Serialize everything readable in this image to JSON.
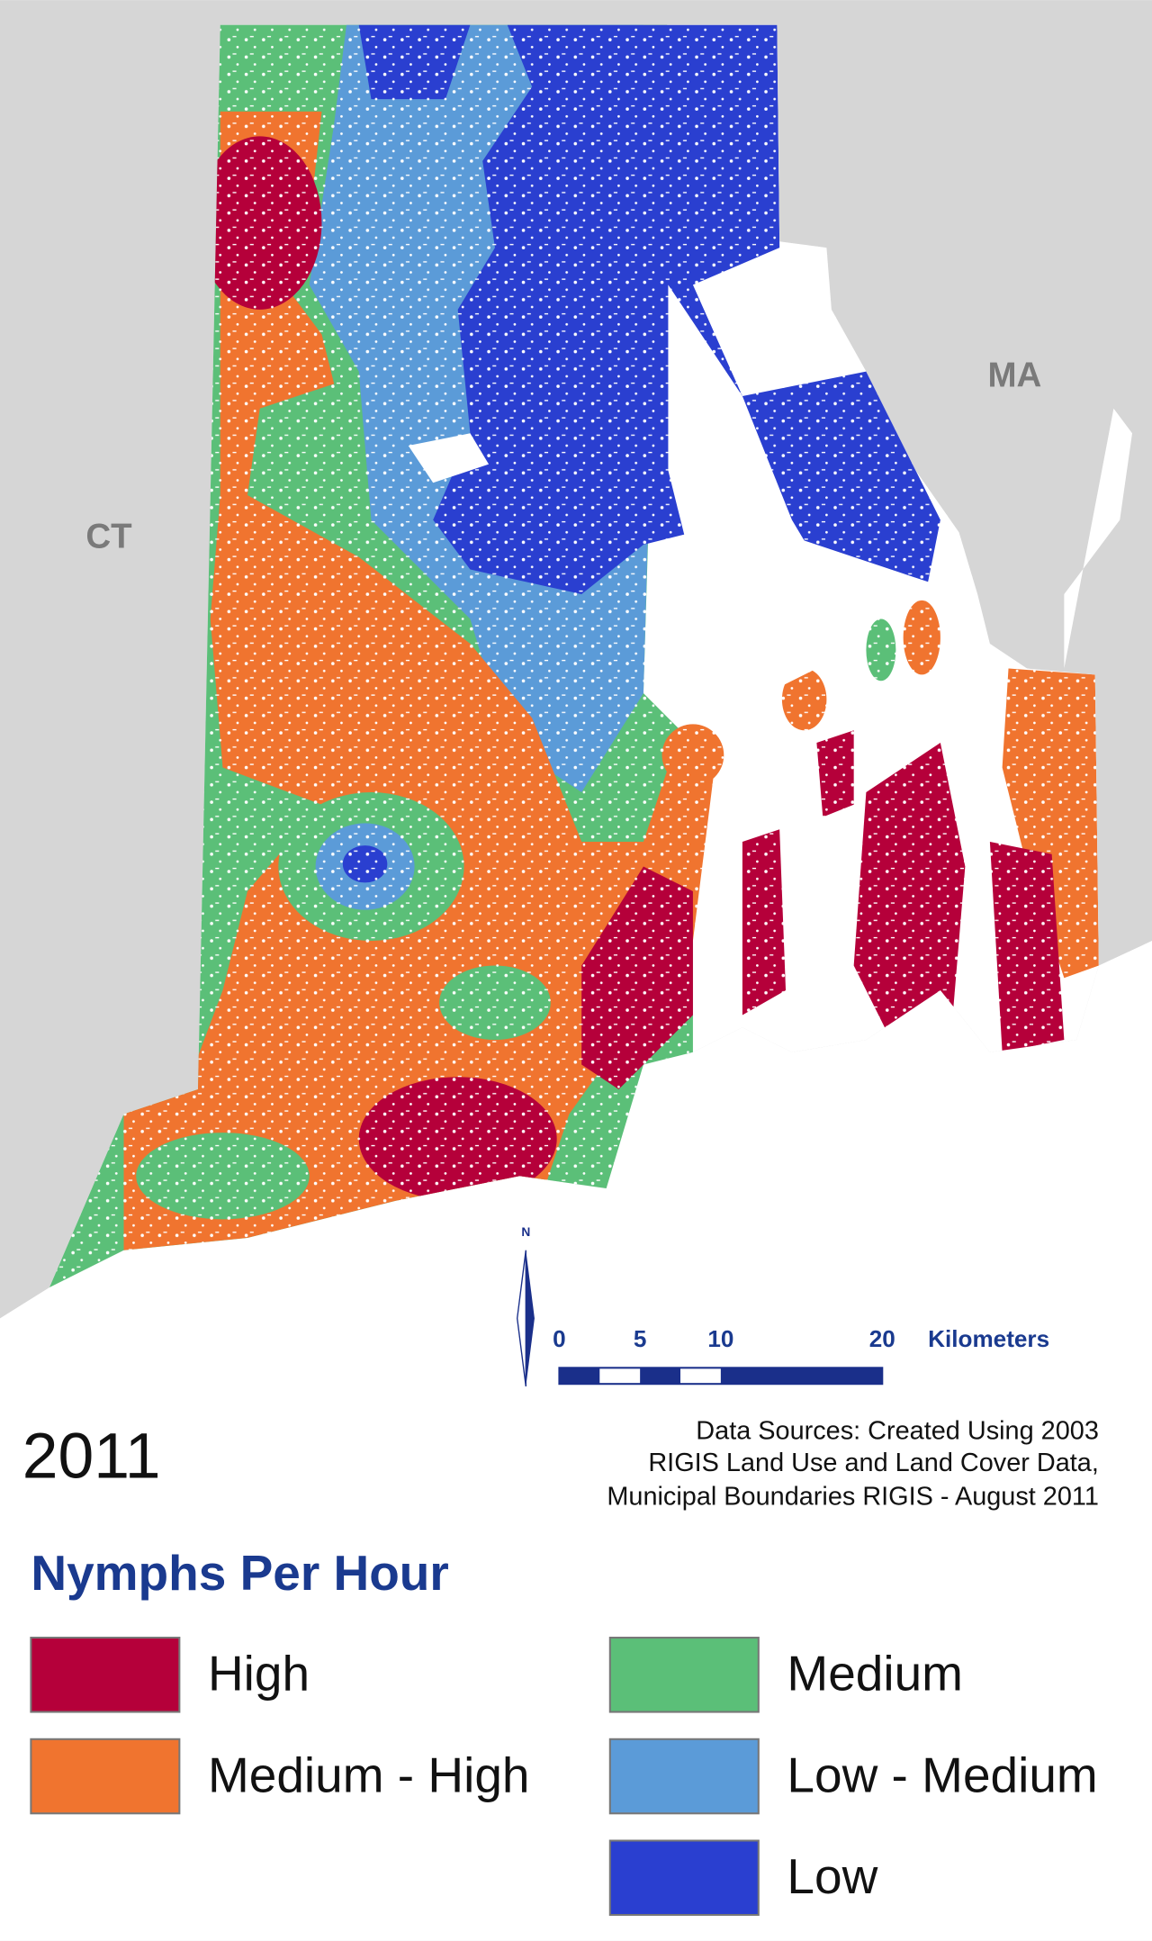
{
  "map": {
    "state_labels": [
      "CT",
      "MA"
    ],
    "year": "2011",
    "north_label": "N",
    "scale_bar": {
      "ticks": [
        0,
        5,
        10,
        20
      ],
      "unit": "Kilometers"
    },
    "data_sources": [
      "Data Sources: Created Using 2003",
      "RIGIS Land Use and Land Cover Data,",
      "Municipal Boundaries RIGIS - August 2011"
    ]
  },
  "legend": {
    "title": "Nymphs Per Hour",
    "items": [
      {
        "label": "High",
        "color": "#b5003a"
      },
      {
        "label": "Medium - High",
        "color": "#f0742f"
      },
      {
        "label": "Medium",
        "color": "#5bbf78"
      },
      {
        "label": "Low - Medium",
        "color": "#5b9bd8"
      },
      {
        "label": "Low",
        "color": "#2a3fd0"
      }
    ]
  }
}
